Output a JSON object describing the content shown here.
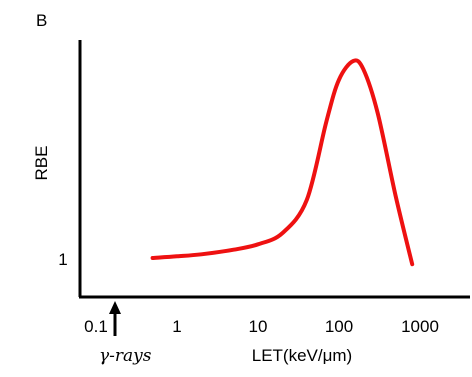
{
  "panel_label": "B",
  "annotation": "γ-rays",
  "colors": {
    "curve": "#ee1111",
    "axis": "#000000"
  },
  "chart_data": {
    "type": "line",
    "xlabel": "LET(keV/μm)",
    "ylabel": "RBE",
    "xscale": "log",
    "x_ticks": [
      "0.1",
      "1",
      "10",
      "100",
      "1000"
    ],
    "y_ticks": [
      "1"
    ],
    "grid": false,
    "legend": "none",
    "annotation_arrow_at_x": 0.5,
    "series": [
      {
        "x": [
          0.5,
          1,
          2,
          5,
          10,
          20,
          40,
          70,
          100,
          150,
          200,
          300,
          500,
          800
        ],
        "y": [
          1.0,
          1.04,
          1.09,
          1.2,
          1.33,
          1.6,
          2.4,
          4.3,
          5.3,
          5.75,
          5.55,
          4.5,
          2.5,
          0.85
        ]
      }
    ]
  }
}
